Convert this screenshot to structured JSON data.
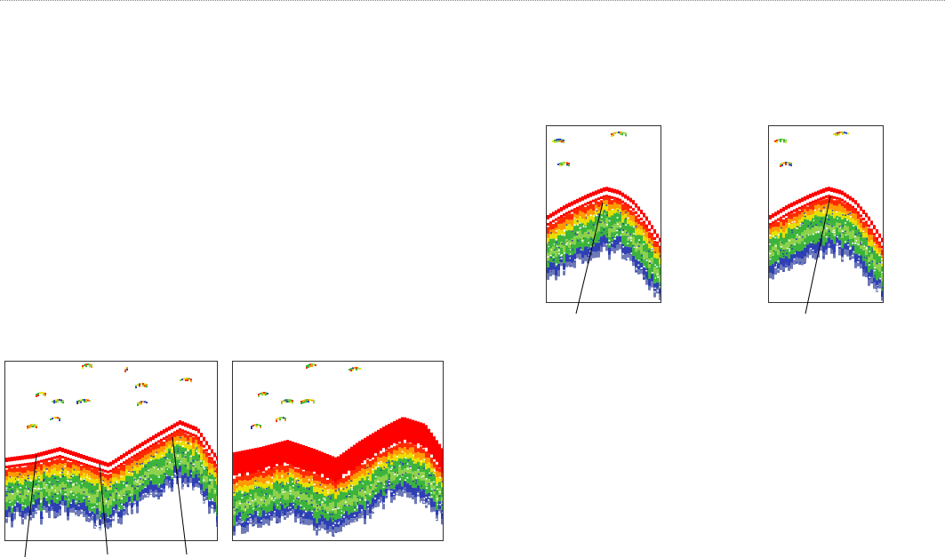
{
  "colors": {
    "bottom_echo": "#ff0000",
    "strong": "#ff2a00",
    "orange": "#ff9a00",
    "yellow": "#e8e000",
    "green": "#3cb43c",
    "light_green": "#8ed24a",
    "blue": "#2e3fb4",
    "gray_blue": "#6d79b8",
    "frame": "#333333"
  },
  "panels": [
    {
      "id": "wide-normal",
      "bottom_line": "separated"
    },
    {
      "id": "wide-filled",
      "bottom_line": "filled"
    },
    {
      "id": "zoom-a",
      "bottom_line": "separated"
    },
    {
      "id": "zoom-b",
      "bottom_line": "separated"
    }
  ]
}
